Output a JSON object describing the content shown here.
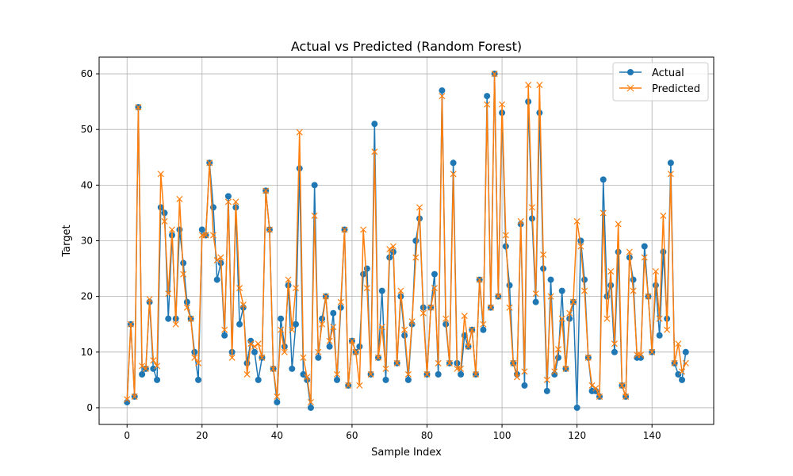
{
  "chart_data": {
    "type": "line",
    "title": "Actual vs Predicted (Random Forest)",
    "xlabel": "Sample Index",
    "ylabel": "Target",
    "xlim": [
      -7.45,
      156.45
    ],
    "ylim": [
      -3,
      63
    ],
    "xticks": [
      0,
      20,
      40,
      60,
      80,
      100,
      120,
      140
    ],
    "yticks": [
      0,
      10,
      20,
      30,
      40,
      50,
      60
    ],
    "grid": true,
    "legend_position": "top-right",
    "series": [
      {
        "name": "Actual",
        "color": "#1f77b4",
        "marker": "circle",
        "values": [
          1,
          15,
          2,
          54,
          6,
          7,
          19,
          7,
          5,
          36,
          35,
          16,
          31,
          16,
          32,
          26,
          19,
          16,
          10,
          5,
          32,
          31,
          44,
          36,
          23,
          26,
          13,
          38,
          10,
          36,
          15,
          18,
          8,
          12,
          10,
          5,
          9,
          39,
          32,
          7,
          1,
          16,
          11,
          22,
          7,
          15,
          43,
          6,
          5,
          0,
          40,
          9,
          16,
          20,
          11,
          17,
          5,
          18,
          32,
          4,
          12,
          10,
          11,
          24,
          25,
          6,
          51,
          9,
          21,
          5,
          27,
          28,
          8,
          20,
          13,
          5,
          15,
          30,
          34,
          18,
          6,
          18,
          24,
          6,
          57,
          15,
          8,
          44,
          8,
          6,
          13,
          11,
          14,
          6,
          23,
          14,
          56,
          18,
          60,
          20,
          53,
          29,
          22,
          8,
          6,
          33,
          4,
          55,
          34,
          19,
          53,
          25,
          3,
          23,
          6,
          9,
          21,
          7,
          16,
          19,
          0,
          30,
          23,
          9,
          3,
          3,
          2,
          41,
          20,
          22,
          10,
          28,
          4,
          2,
          27,
          23,
          9,
          9,
          29,
          20,
          10,
          22,
          13,
          28,
          16,
          44,
          8,
          6,
          5,
          10
        ]
      },
      {
        "name": "Predicted",
        "color": "#ff7f0e",
        "marker": "x",
        "values": [
          1.5,
          15,
          2,
          54,
          7.5,
          7,
          19.5,
          8.5,
          7.5,
          42,
          33.5,
          20.5,
          32,
          15,
          37.5,
          24,
          18,
          16,
          9,
          8,
          31,
          31,
          44,
          31,
          26.5,
          27,
          14,
          37,
          9,
          37,
          21.5,
          18.5,
          6,
          11.5,
          11,
          11.5,
          9,
          39,
          32,
          7,
          2,
          14,
          10,
          23,
          14,
          21.5,
          49.5,
          9,
          5.5,
          1,
          34.5,
          10,
          15,
          20,
          12,
          14.5,
          6,
          19,
          32,
          4,
          12,
          10,
          4,
          32,
          21.5,
          6,
          46,
          9,
          14.5,
          7,
          28.5,
          29,
          8,
          21,
          14,
          6,
          15.5,
          27,
          36,
          17,
          6,
          18,
          21.5,
          8,
          56,
          16,
          8,
          42,
          7,
          7,
          16.5,
          11,
          14,
          6,
          23,
          15,
          54.5,
          18,
          60,
          20,
          54.5,
          31,
          18,
          8,
          5.5,
          33.5,
          6.5,
          58,
          36,
          20.5,
          58,
          27.5,
          5,
          20,
          6.5,
          10.5,
          16,
          7,
          17,
          19,
          33.5,
          29,
          21,
          9,
          4,
          3.5,
          2,
          35,
          16,
          24.5,
          11.5,
          33,
          4,
          2,
          28,
          21,
          9.5,
          9.5,
          27,
          20,
          10,
          24.5,
          16,
          34.5,
          14,
          42,
          8,
          11.5,
          6.5,
          8
        ]
      }
    ]
  }
}
